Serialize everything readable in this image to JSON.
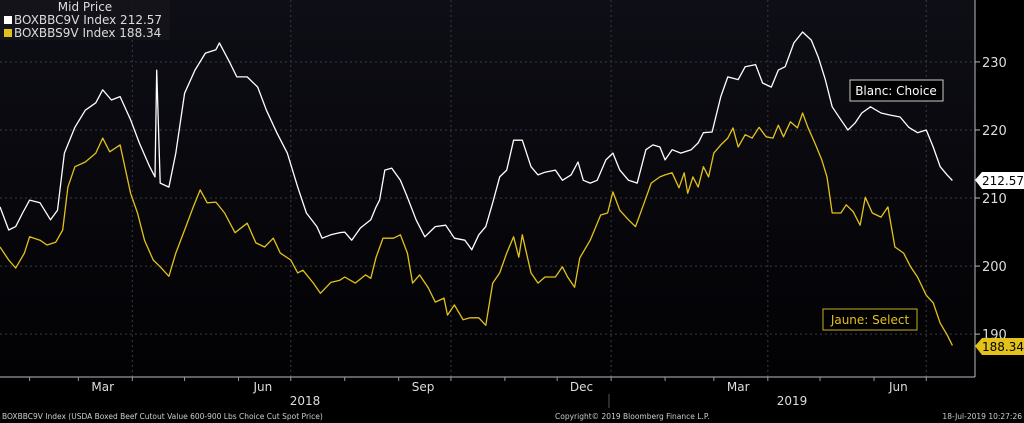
{
  "legend": {
    "title": "Mid Price",
    "items": [
      {
        "label": "BOXBBC9V Index 212.57",
        "color": "#ffffff"
      },
      {
        "label": "BOXBBS9V Index 188.34",
        "color": "#e2c21a"
      }
    ]
  },
  "footer": {
    "source": "BOXBBC9V Index (USDA Boxed Beef Cutout Value 600-900 Lbs Choice Cut Spot Price)",
    "copyright": "Copyright© 2019 Bloomberg Finance L.P.",
    "timestamp": "18-Jul-2019 10:27:26"
  },
  "chart_data": {
    "type": "line",
    "title": "",
    "xlabel": "",
    "ylabel": "",
    "xlim": [
      "2018-01-15",
      "2019-07-29"
    ],
    "ylim": [
      183.7,
      239.1
    ],
    "y_ticks": [
      190,
      200,
      210,
      220,
      230
    ],
    "x_tick_labels": [
      {
        "label": "Mar",
        "date": "2018-03-15"
      },
      {
        "label": "Jun",
        "date": "2018-06-15"
      },
      {
        "label": "Sep",
        "date": "2018-09-15"
      },
      {
        "label": "Dec",
        "date": "2018-12-15"
      },
      {
        "label": "Mar",
        "date": "2019-03-15"
      },
      {
        "label": "Jun",
        "date": "2019-06-15"
      }
    ],
    "year_labels": [
      "2018",
      "2019"
    ],
    "grid": true,
    "legend_position": "top-left",
    "annotations": [
      {
        "text": "Blanc: Choice",
        "series": 0
      },
      {
        "text": "Jaune: Select",
        "series": 1
      }
    ],
    "last_value_labels": [
      "212.57",
      "188.34"
    ],
    "series": [
      {
        "name": "BOXBBC9V Index",
        "color": "#ffffff",
        "points": [
          [
            "2018-01-15",
            208.7
          ],
          [
            "2018-01-20",
            205.3
          ],
          [
            "2018-01-24",
            205.8
          ],
          [
            "2018-01-28",
            207.8
          ],
          [
            "2018-02-01",
            209.7
          ],
          [
            "2018-02-07",
            209.3
          ],
          [
            "2018-02-13",
            206.8
          ],
          [
            "2018-02-17",
            208.2
          ],
          [
            "2018-02-21",
            216.6
          ],
          [
            "2018-02-27",
            220.4
          ],
          [
            "2018-03-05",
            222.9
          ],
          [
            "2018-03-11",
            224.0
          ],
          [
            "2018-03-15",
            225.9
          ],
          [
            "2018-03-20",
            224.4
          ],
          [
            "2018-03-25",
            224.9
          ],
          [
            "2018-03-31",
            221.5
          ],
          [
            "2018-04-05",
            218.1
          ],
          [
            "2018-04-11",
            214.6
          ],
          [
            "2018-04-14",
            213.1
          ],
          [
            "2018-04-15",
            228.8
          ],
          [
            "2018-04-17",
            212.2
          ],
          [
            "2018-04-22",
            211.6
          ],
          [
            "2018-04-26",
            216.6
          ],
          [
            "2018-05-01",
            225.4
          ],
          [
            "2018-05-07",
            228.8
          ],
          [
            "2018-05-13",
            231.3
          ],
          [
            "2018-05-19",
            231.8
          ],
          [
            "2018-05-21",
            232.8
          ],
          [
            "2018-05-27",
            229.9
          ],
          [
            "2018-05-31",
            227.8
          ],
          [
            "2018-06-06",
            227.8
          ],
          [
            "2018-06-12",
            226.3
          ],
          [
            "2018-06-17",
            222.9
          ],
          [
            "2018-06-23",
            219.6
          ],
          [
            "2018-06-29",
            216.6
          ],
          [
            "2018-07-05",
            211.6
          ],
          [
            "2018-07-10",
            207.8
          ],
          [
            "2018-07-16",
            205.8
          ],
          [
            "2018-07-19",
            204.1
          ],
          [
            "2018-07-24",
            204.6
          ],
          [
            "2018-07-29",
            204.9
          ],
          [
            "2018-08-01",
            205.0
          ],
          [
            "2018-08-05",
            203.8
          ],
          [
            "2018-08-10",
            205.6
          ],
          [
            "2018-08-16",
            206.8
          ],
          [
            "2018-08-19",
            208.7
          ],
          [
            "2018-08-21",
            209.7
          ],
          [
            "2018-08-24",
            214.1
          ],
          [
            "2018-08-28",
            214.4
          ],
          [
            "2018-09-02",
            212.6
          ],
          [
            "2018-09-06",
            210.1
          ],
          [
            "2018-09-11",
            206.8
          ],
          [
            "2018-09-16",
            204.3
          ],
          [
            "2018-09-22",
            205.8
          ],
          [
            "2018-09-28",
            206.0
          ],
          [
            "2018-10-03",
            204.1
          ],
          [
            "2018-10-09",
            203.8
          ],
          [
            "2018-10-13",
            202.4
          ],
          [
            "2018-10-17",
            204.6
          ],
          [
            "2018-10-21",
            205.8
          ],
          [
            "2018-10-25",
            209.3
          ],
          [
            "2018-10-29",
            213.1
          ],
          [
            "2018-11-02",
            214.1
          ],
          [
            "2018-11-06",
            218.5
          ],
          [
            "2018-11-11",
            218.5
          ],
          [
            "2018-11-16",
            214.6
          ],
          [
            "2018-11-20",
            213.4
          ],
          [
            "2018-11-24",
            213.8
          ],
          [
            "2018-11-30",
            214.1
          ],
          [
            "2018-12-04",
            212.6
          ],
          [
            "2018-12-09",
            213.4
          ],
          [
            "2018-12-13",
            215.3
          ],
          [
            "2018-12-16",
            212.6
          ],
          [
            "2018-12-20",
            212.2
          ],
          [
            "2018-12-24",
            212.6
          ],
          [
            "2018-12-29",
            215.6
          ],
          [
            "2019-01-02",
            216.6
          ],
          [
            "2019-01-06",
            214.1
          ],
          [
            "2019-01-11",
            212.6
          ],
          [
            "2019-01-16",
            212.2
          ],
          [
            "2019-01-21",
            217.1
          ],
          [
            "2019-01-25",
            217.8
          ],
          [
            "2019-01-29",
            217.5
          ],
          [
            "2019-02-01",
            215.6
          ],
          [
            "2019-02-05",
            217.1
          ],
          [
            "2019-02-10",
            216.6
          ],
          [
            "2019-02-16",
            217.1
          ],
          [
            "2019-02-20",
            218.1
          ],
          [
            "2019-02-23",
            219.6
          ],
          [
            "2019-02-28",
            219.7
          ],
          [
            "2019-03-05",
            224.9
          ],
          [
            "2019-03-09",
            227.8
          ],
          [
            "2019-03-15",
            227.4
          ],
          [
            "2019-03-19",
            229.3
          ],
          [
            "2019-03-25",
            229.6
          ],
          [
            "2019-03-29",
            226.9
          ],
          [
            "2019-04-03",
            226.3
          ],
          [
            "2019-04-07",
            228.8
          ],
          [
            "2019-04-11",
            229.3
          ],
          [
            "2019-04-16",
            232.8
          ],
          [
            "2019-04-21",
            234.4
          ],
          [
            "2019-04-26",
            233.2
          ],
          [
            "2019-04-30",
            230.7
          ],
          [
            "2019-05-04",
            227.4
          ],
          [
            "2019-05-08",
            223.4
          ],
          [
            "2019-05-13",
            221.5
          ],
          [
            "2019-05-17",
            220.0
          ],
          [
            "2019-05-21",
            221.0
          ],
          [
            "2019-05-25",
            222.5
          ],
          [
            "2019-05-30",
            223.4
          ],
          [
            "2019-06-05",
            222.5
          ],
          [
            "2019-06-10",
            222.2
          ],
          [
            "2019-06-16",
            221.9
          ],
          [
            "2019-06-21",
            220.4
          ],
          [
            "2019-06-26",
            219.6
          ],
          [
            "2019-07-01",
            220.0
          ],
          [
            "2019-07-05",
            217.5
          ],
          [
            "2019-07-09",
            214.6
          ],
          [
            "2019-07-13",
            213.4
          ],
          [
            "2019-07-16",
            212.57
          ]
        ]
      },
      {
        "name": "BOXBBS9V Index",
        "color": "#e2c21a",
        "points": [
          [
            "2018-01-15",
            202.8
          ],
          [
            "2018-01-20",
            200.9
          ],
          [
            "2018-01-24",
            199.7
          ],
          [
            "2018-01-29",
            201.9
          ],
          [
            "2018-02-01",
            204.3
          ],
          [
            "2018-02-07",
            203.8
          ],
          [
            "2018-02-11",
            203.1
          ],
          [
            "2018-02-16",
            203.5
          ],
          [
            "2018-02-20",
            205.3
          ],
          [
            "2018-02-23",
            211.6
          ],
          [
            "2018-02-27",
            214.6
          ],
          [
            "2018-03-05",
            215.3
          ],
          [
            "2018-03-11",
            216.6
          ],
          [
            "2018-03-15",
            218.8
          ],
          [
            "2018-03-19",
            216.8
          ],
          [
            "2018-03-25",
            217.8
          ],
          [
            "2018-03-31",
            210.7
          ],
          [
            "2018-04-04",
            207.8
          ],
          [
            "2018-04-08",
            203.8
          ],
          [
            "2018-04-13",
            200.9
          ],
          [
            "2018-04-17",
            199.9
          ],
          [
            "2018-04-22",
            198.5
          ],
          [
            "2018-04-26",
            201.9
          ],
          [
            "2018-05-01",
            205.3
          ],
          [
            "2018-05-06",
            208.7
          ],
          [
            "2018-05-10",
            211.2
          ],
          [
            "2018-05-14",
            209.3
          ],
          [
            "2018-05-19",
            209.4
          ],
          [
            "2018-05-24",
            207.8
          ],
          [
            "2018-05-30",
            204.9
          ],
          [
            "2018-06-06",
            206.3
          ],
          [
            "2018-06-11",
            203.4
          ],
          [
            "2018-06-16",
            202.8
          ],
          [
            "2018-06-21",
            204.1
          ],
          [
            "2018-06-25",
            201.9
          ],
          [
            "2018-07-01",
            200.9
          ],
          [
            "2018-07-05",
            199.0
          ],
          [
            "2018-07-08",
            199.4
          ],
          [
            "2018-07-14",
            197.5
          ],
          [
            "2018-07-18",
            196.0
          ],
          [
            "2018-07-24",
            197.6
          ],
          [
            "2018-07-29",
            197.9
          ],
          [
            "2018-08-01",
            198.4
          ],
          [
            "2018-08-07",
            197.5
          ],
          [
            "2018-08-13",
            198.7
          ],
          [
            "2018-08-16",
            198.2
          ],
          [
            "2018-08-19",
            201.3
          ],
          [
            "2018-08-23",
            204.1
          ],
          [
            "2018-08-29",
            204.1
          ],
          [
            "2018-09-02",
            204.6
          ],
          [
            "2018-09-06",
            201.9
          ],
          [
            "2018-09-09",
            197.5
          ],
          [
            "2018-09-13",
            198.7
          ],
          [
            "2018-09-18",
            196.8
          ],
          [
            "2018-09-22",
            194.7
          ],
          [
            "2018-09-27",
            195.3
          ],
          [
            "2018-09-29",
            192.8
          ],
          [
            "2018-10-03",
            194.3
          ],
          [
            "2018-10-08",
            192.1
          ],
          [
            "2018-10-12",
            192.4
          ],
          [
            "2018-10-17",
            192.4
          ],
          [
            "2018-10-21",
            191.3
          ],
          [
            "2018-10-25",
            197.5
          ],
          [
            "2018-10-29",
            199.0
          ],
          [
            "2018-11-02",
            201.9
          ],
          [
            "2018-11-06",
            204.3
          ],
          [
            "2018-11-09",
            201.3
          ],
          [
            "2018-11-11",
            204.6
          ],
          [
            "2018-11-16",
            199.0
          ],
          [
            "2018-11-20",
            197.5
          ],
          [
            "2018-11-24",
            198.4
          ],
          [
            "2018-11-30",
            198.4
          ],
          [
            "2018-12-04",
            199.9
          ],
          [
            "2018-12-07",
            198.4
          ],
          [
            "2018-12-11",
            196.9
          ],
          [
            "2018-12-14",
            201.2
          ],
          [
            "2018-12-20",
            203.8
          ],
          [
            "2018-12-26",
            207.5
          ],
          [
            "2018-12-30",
            207.8
          ],
          [
            "2019-01-02",
            210.9
          ],
          [
            "2019-01-06",
            208.2
          ],
          [
            "2019-01-11",
            206.8
          ],
          [
            "2019-01-15",
            205.8
          ],
          [
            "2019-01-20",
            209.3
          ],
          [
            "2019-01-24",
            212.2
          ],
          [
            "2019-01-29",
            213.1
          ],
          [
            "2019-02-01",
            213.4
          ],
          [
            "2019-02-05",
            213.7
          ],
          [
            "2019-02-09",
            211.5
          ],
          [
            "2019-02-12",
            213.7
          ],
          [
            "2019-02-14",
            210.7
          ],
          [
            "2019-02-17",
            213.1
          ],
          [
            "2019-02-20",
            211.6
          ],
          [
            "2019-02-23",
            214.6
          ],
          [
            "2019-02-26",
            213.1
          ],
          [
            "2019-03-01",
            216.6
          ],
          [
            "2019-03-05",
            217.8
          ],
          [
            "2019-03-09",
            218.8
          ],
          [
            "2019-03-12",
            220.3
          ],
          [
            "2019-03-15",
            217.5
          ],
          [
            "2019-03-19",
            219.3
          ],
          [
            "2019-03-23",
            218.8
          ],
          [
            "2019-03-27",
            220.4
          ],
          [
            "2019-03-31",
            219.0
          ],
          [
            "2019-04-04",
            218.8
          ],
          [
            "2019-04-07",
            220.7
          ],
          [
            "2019-04-10",
            219.0
          ],
          [
            "2019-04-14",
            221.2
          ],
          [
            "2019-04-18",
            220.3
          ],
          [
            "2019-04-21",
            222.5
          ],
          [
            "2019-04-24",
            220.4
          ],
          [
            "2019-04-28",
            218.1
          ],
          [
            "2019-05-02",
            215.6
          ],
          [
            "2019-05-05",
            213.1
          ],
          [
            "2019-05-08",
            207.8
          ],
          [
            "2019-05-13",
            207.8
          ],
          [
            "2019-05-16",
            209.0
          ],
          [
            "2019-05-20",
            208.0
          ],
          [
            "2019-05-24",
            206.0
          ],
          [
            "2019-05-27",
            210.1
          ],
          [
            "2019-05-31",
            207.8
          ],
          [
            "2019-06-05",
            207.2
          ],
          [
            "2019-06-09",
            208.7
          ],
          [
            "2019-06-13",
            202.8
          ],
          [
            "2019-06-18",
            201.9
          ],
          [
            "2019-06-22",
            199.9
          ],
          [
            "2019-06-26",
            198.4
          ],
          [
            "2019-07-01",
            195.7
          ],
          [
            "2019-07-05",
            194.6
          ],
          [
            "2019-07-09",
            191.6
          ],
          [
            "2019-07-13",
            189.9
          ],
          [
            "2019-07-16",
            188.34
          ]
        ]
      }
    ]
  }
}
